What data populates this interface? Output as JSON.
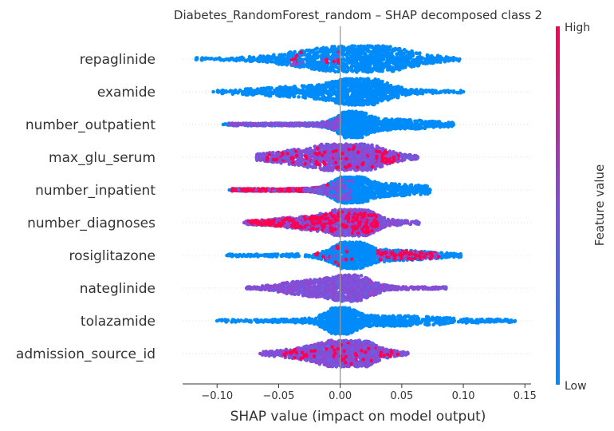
{
  "chart_data": {
    "type": "scatter",
    "subtype": "shap-beeswarm",
    "title": "Diabetes_RandomForest_random – SHAP decomposed class 2",
    "xlabel": "SHAP value (impact on model output)",
    "xlim": [
      -0.128,
      0.155
    ],
    "xticks": [
      -0.1,
      -0.05,
      0.0,
      0.05,
      0.1,
      0.15
    ],
    "xtick_labels": [
      "−0.10",
      "−0.05",
      "0.00",
      "0.05",
      "0.10",
      "0.15"
    ],
    "colorbar": {
      "label": "Feature value",
      "high_label": "High",
      "low_label": "Low",
      "low_color": "#008bfb",
      "high_color": "#ff0051"
    },
    "features": [
      {
        "name": "repaglinide",
        "min": -0.117,
        "max": 0.097,
        "color": "low",
        "peaks": [
          {
            "x": 0.028,
            "w": 0.028,
            "h": 1.0
          },
          {
            "x": -0.02,
            "w": 0.028,
            "h": 0.55
          }
        ],
        "accents": [
          {
            "lo": -0.04,
            "hi": -0.03,
            "c": "high",
            "n": 12
          },
          {
            "lo": -0.015,
            "hi": 0.0,
            "c": "high",
            "n": 10
          }
        ]
      },
      {
        "name": "examide",
        "min": -0.103,
        "max": 0.1,
        "color": "low",
        "peaks": [
          {
            "x": 0.018,
            "w": 0.02,
            "h": 1.0
          },
          {
            "x": -0.03,
            "w": 0.035,
            "h": 0.35
          }
        ],
        "accents": []
      },
      {
        "name": "number_outpatient",
        "min": -0.095,
        "max": 0.092,
        "color": "low",
        "peaks": [
          {
            "x": 0.01,
            "w": 0.01,
            "h": 1.0
          },
          {
            "x": 0.04,
            "w": 0.03,
            "h": 0.35
          }
        ],
        "accents": [
          {
            "lo": -0.09,
            "hi": 0.0,
            "c": "mix",
            "n": 260
          }
        ]
      },
      {
        "name": "max_glu_serum",
        "min": -0.068,
        "max": 0.063,
        "color": "mix",
        "peaks": [
          {
            "x": 0.012,
            "w": 0.02,
            "h": 1.0
          },
          {
            "x": -0.02,
            "w": 0.03,
            "h": 0.6
          }
        ],
        "accents": [
          {
            "lo": -0.06,
            "hi": 0.05,
            "c": "high",
            "n": 120
          }
        ]
      },
      {
        "name": "number_inpatient",
        "min": -0.09,
        "max": 0.073,
        "color": "low",
        "peaks": [
          {
            "x": 0.008,
            "w": 0.012,
            "h": 1.0
          },
          {
            "x": 0.04,
            "w": 0.03,
            "h": 0.4
          }
        ],
        "accents": [
          {
            "lo": -0.088,
            "hi": -0.01,
            "c": "high",
            "n": 380
          },
          {
            "lo": -0.03,
            "hi": 0.01,
            "c": "mix",
            "n": 120
          }
        ]
      },
      {
        "name": "number_diagnoses",
        "min": -0.078,
        "max": 0.064,
        "color": "mix",
        "peaks": [
          {
            "x": 0.012,
            "w": 0.012,
            "h": 1.0
          },
          {
            "x": -0.01,
            "w": 0.03,
            "h": 0.6
          }
        ],
        "accents": [
          {
            "lo": -0.075,
            "hi": 0.03,
            "c": "high",
            "n": 480
          }
        ]
      },
      {
        "name": "rosiglitazone",
        "min": -0.092,
        "max": 0.098,
        "color": "low",
        "peaks": [
          {
            "x": 0.008,
            "w": 0.012,
            "h": 1.0
          },
          {
            "x": 0.04,
            "w": 0.03,
            "h": 0.35
          }
        ],
        "accents": [
          {
            "lo": 0.03,
            "hi": 0.08,
            "c": "high",
            "n": 110
          },
          {
            "lo": -0.02,
            "hi": 0.01,
            "c": "high",
            "n": 20
          }
        ]
      },
      {
        "name": "nateglinide",
        "min": -0.076,
        "max": 0.086,
        "color": "mix",
        "peaks": [
          {
            "x": 0.01,
            "w": 0.014,
            "h": 1.0
          },
          {
            "x": -0.025,
            "w": 0.02,
            "h": 0.55
          }
        ],
        "accents": []
      },
      {
        "name": "tolazamide",
        "min": -0.1,
        "max": 0.142,
        "color": "low",
        "peaks": [
          {
            "x": 0.0,
            "w": 0.01,
            "h": 1.0
          },
          {
            "x": 0.04,
            "w": 0.04,
            "h": 0.35
          }
        ],
        "accents": []
      },
      {
        "name": "admission_source_id",
        "min": -0.065,
        "max": 0.055,
        "color": "mix",
        "peaks": [
          {
            "x": 0.01,
            "w": 0.015,
            "h": 1.0
          },
          {
            "x": -0.01,
            "w": 0.025,
            "h": 0.6
          }
        ],
        "accents": [
          {
            "lo": -0.05,
            "hi": 0.05,
            "c": "high",
            "n": 80
          }
        ]
      }
    ]
  }
}
